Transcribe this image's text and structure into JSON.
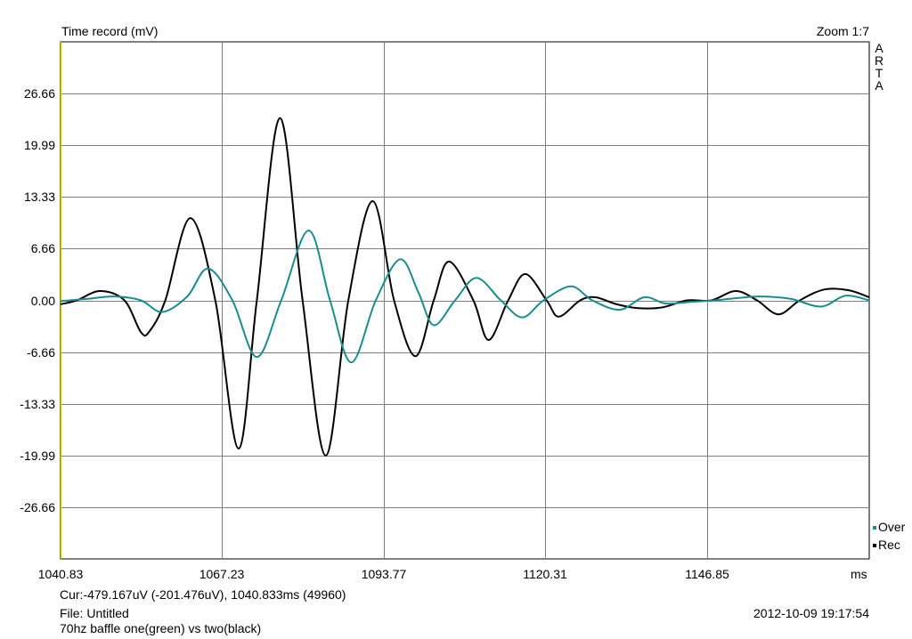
{
  "header": {
    "title": "Time record (mV)",
    "zoom": "Zoom 1:7",
    "brand": "ARTA"
  },
  "footer": {
    "cursor": "Cur:-479.167uV (-201.476uV), 1040.833ms (49960)",
    "file": "File: Untitled",
    "note": "70hz baffle one(green) vs two(black)",
    "datetime": "2012-10-09  19:17:54"
  },
  "colors": {
    "plot_frame": "#000000",
    "grid": "#808080",
    "left_axis": "#c8c800",
    "over": "#1a8c8c",
    "rec": "#000000"
  },
  "chart_data": {
    "type": "line",
    "title": "Time record (mV)",
    "xlabel": "ms",
    "ylabel": "",
    "xlim": [
      1040.83,
      1173.39
    ],
    "ylim": [
      -33.33,
      33.33
    ],
    "x_ticks": [
      "1040.83",
      "1067.23",
      "1093.77",
      "1120.31",
      "1146.85"
    ],
    "x_unit": "ms",
    "y_ticks": [
      "26.66",
      "19.99",
      "13.33",
      "6.66",
      "0.00",
      "-6.66",
      "-13.33",
      "-19.99",
      "-26.66"
    ],
    "grid": true,
    "legend_placement": "bottom-right",
    "series": [
      {
        "name": "Over",
        "color": "#1a8c8c",
        "x": [
          1040.83,
          1045.3,
          1049.6,
          1054.0,
          1057.5,
          1061.6,
          1065.0,
          1069.0,
          1073.0,
          1077.0,
          1081.5,
          1085.0,
          1088.5,
          1092.5,
          1096.5,
          1099.5,
          1102.0,
          1105.5,
          1109.0,
          1113.0,
          1116.5,
          1120.0,
          1124.5,
          1128.0,
          1132.5,
          1136.5,
          1140.0,
          1144.0,
          1148.0,
          1151.8,
          1155.5,
          1160.5,
          1165.5,
          1169.5,
          1173.39
        ],
        "y": [
          -0.1,
          0.2,
          0.5,
          0.0,
          -1.5,
          0.5,
          4.1,
          0.0,
          -7.3,
          0.0,
          9.0,
          0.0,
          -8.0,
          0.0,
          5.3,
          1.0,
          -3.2,
          0.0,
          2.9,
          0.0,
          -2.2,
          0.0,
          1.8,
          0.0,
          -1.2,
          0.4,
          -0.4,
          -0.2,
          0.0,
          0.3,
          0.5,
          0.2,
          -0.8,
          0.6,
          0.0
        ]
      },
      {
        "name": "Rec",
        "color": "#000000",
        "x": [
          1040.83,
          1043.5,
          1047.3,
          1051.3,
          1054.0,
          1055.4,
          1058.0,
          1062.1,
          1066.2,
          1070.0,
          1073.0,
          1076.8,
          1080.5,
          1084.3,
          1088.0,
          1092.0,
          1095.5,
          1099.0,
          1102.0,
          1104.5,
          1108.5,
          1111.0,
          1114.2,
          1117.0,
          1120.5,
          1122.5,
          1126.0,
          1128.5,
          1132.0,
          1135.5,
          1139.5,
          1143.5,
          1147.5,
          1151.5,
          1155.0,
          1158.5,
          1162.0,
          1166.0,
          1170.0,
          1173.39
        ],
        "y": [
          -0.5,
          0.0,
          1.2,
          0.0,
          -4.1,
          -4.0,
          0.0,
          10.6,
          0.0,
          -19.1,
          0.0,
          23.5,
          0.0,
          -20.0,
          0.0,
          12.8,
          0.0,
          -7.2,
          0.0,
          5.0,
          0.0,
          -5.1,
          0.0,
          3.4,
          0.0,
          -2.1,
          0.0,
          0.4,
          -0.5,
          -1.0,
          -0.9,
          0.0,
          0.0,
          1.2,
          0.0,
          -1.8,
          0.0,
          1.4,
          1.3,
          0.4
        ]
      }
    ]
  }
}
